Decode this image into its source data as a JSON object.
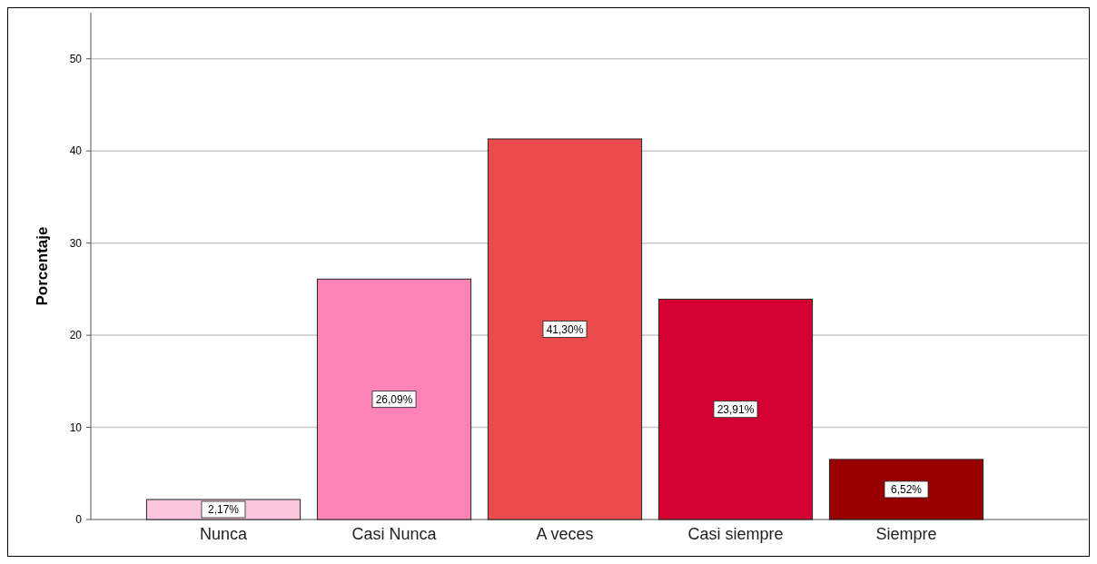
{
  "chart_data": {
    "type": "bar",
    "ylabel": "Porcentaje",
    "categories": [
      "Nunca",
      "Casi Nunca",
      "A veces",
      "Casi siempre",
      "Siempre"
    ],
    "values": [
      2.17,
      26.09,
      41.3,
      23.91,
      6.52
    ],
    "colors": [
      "#fcc6e0",
      "#fe84b8",
      "#ea4b4c",
      "#d50032",
      "#990000"
    ],
    "value_labels": [
      "2,17%",
      "26,09%",
      "41,30%",
      "23,91%",
      "6,52%"
    ],
    "ylim": [
      0,
      55
    ],
    "yticks": [
      0,
      10,
      20,
      30,
      40,
      50
    ],
    "grid": "y"
  }
}
